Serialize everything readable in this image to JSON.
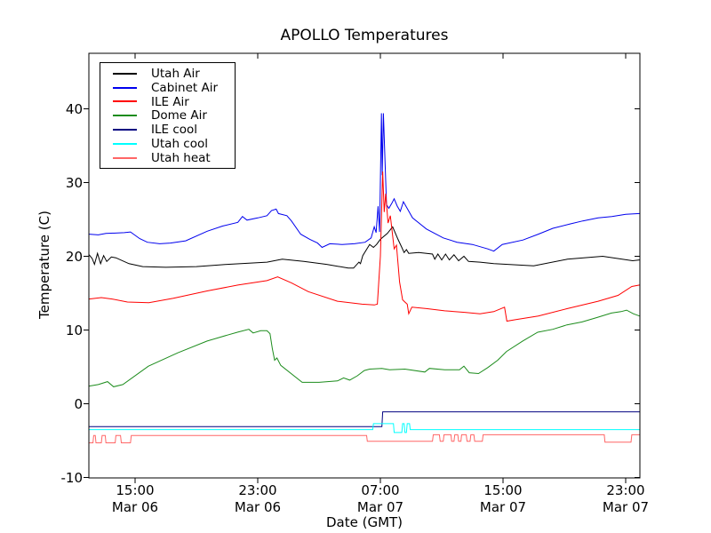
{
  "title": "APOLLO Temperatures",
  "chart_data": {
    "type": "line",
    "title": "APOLLO Temperatures",
    "xlabel": "Date (GMT)",
    "ylabel": "Temperature (C)",
    "x_unit": "hours since Mar 06 12:00 GMT",
    "xlim": [
      0,
      35.93
    ],
    "ylim": [
      -10,
      47.5
    ],
    "grid": false,
    "legend_position": "upper left",
    "frame_color": "#000000",
    "y_ticks": [
      {
        "value": 40,
        "label": "40"
      },
      {
        "value": 30,
        "label": "30"
      },
      {
        "value": 20,
        "label": "20"
      },
      {
        "value": 10,
        "label": "10"
      },
      {
        "value": 0,
        "label": "0"
      },
      {
        "value": -10,
        "label": "-10"
      }
    ],
    "x_ticks": [
      {
        "hours": 3,
        "time": "15:00",
        "date": "Mar 06"
      },
      {
        "hours": 11,
        "time": "23:00",
        "date": "Mar 06"
      },
      {
        "hours": 19,
        "time": "07:00",
        "date": "Mar 07"
      },
      {
        "hours": 27,
        "time": "15:00",
        "date": "Mar 07"
      },
      {
        "hours": 35,
        "time": "23:00",
        "date": "Mar 07"
      }
    ],
    "series": [
      {
        "id": "utah-air",
        "name": "Utah Air",
        "color": "#000000",
        "points": [
          [
            0,
            20.2
          ],
          [
            0.2,
            19.7
          ],
          [
            0.35,
            18.9
          ],
          [
            0.55,
            20.4
          ],
          [
            0.75,
            19.0
          ],
          [
            0.95,
            20.1
          ],
          [
            1.15,
            19.3
          ],
          [
            1.45,
            19.9
          ],
          [
            1.75,
            19.8
          ],
          [
            2.6,
            19.0
          ],
          [
            3.5,
            18.6
          ],
          [
            5,
            18.5
          ],
          [
            7,
            18.6
          ],
          [
            9,
            18.9
          ],
          [
            11.6,
            19.2
          ],
          [
            12.6,
            19.6
          ],
          [
            14,
            19.3
          ],
          [
            15.5,
            18.9
          ],
          [
            16.9,
            18.4
          ],
          [
            17.25,
            18.4
          ],
          [
            17.6,
            19.2
          ],
          [
            17.7,
            19.0
          ],
          [
            17.85,
            20.1
          ],
          [
            18.3,
            21.6
          ],
          [
            18.55,
            21.2
          ],
          [
            18.75,
            21.6
          ],
          [
            19.0,
            22.3
          ],
          [
            19.45,
            23.1
          ],
          [
            19.8,
            24.0
          ],
          [
            20.15,
            22.3
          ],
          [
            20.4,
            21.2
          ],
          [
            20.55,
            20.5
          ],
          [
            20.7,
            20.9
          ],
          [
            20.85,
            20.4
          ],
          [
            21.5,
            20.5
          ],
          [
            22.4,
            20.3
          ],
          [
            22.55,
            19.6
          ],
          [
            22.75,
            20.3
          ],
          [
            23.0,
            19.5
          ],
          [
            23.25,
            20.3
          ],
          [
            23.5,
            19.5
          ],
          [
            23.8,
            20.2
          ],
          [
            24.1,
            19.4
          ],
          [
            24.45,
            20.0
          ],
          [
            24.75,
            19.3
          ],
          [
            25.5,
            19.2
          ],
          [
            26.4,
            19.0
          ],
          [
            29.0,
            18.7
          ],
          [
            31.2,
            19.6
          ],
          [
            33.5,
            20.0
          ],
          [
            35.45,
            19.4
          ],
          [
            35.9,
            19.5
          ]
        ]
      },
      {
        "id": "cabinet-air",
        "name": "Cabinet Air",
        "color": "#0000ee",
        "points": [
          [
            0,
            23.0
          ],
          [
            0.6,
            22.9
          ],
          [
            1.1,
            23.1
          ],
          [
            2.3,
            23.2
          ],
          [
            2.7,
            23.3
          ],
          [
            3.3,
            22.4
          ],
          [
            3.8,
            21.9
          ],
          [
            4.6,
            21.7
          ],
          [
            5.3,
            21.8
          ],
          [
            6.3,
            22.1
          ],
          [
            7.7,
            23.4
          ],
          [
            8.7,
            24.1
          ],
          [
            9.7,
            24.6
          ],
          [
            10.0,
            25.4
          ],
          [
            10.3,
            24.9
          ],
          [
            11.0,
            25.2
          ],
          [
            11.6,
            25.5
          ],
          [
            11.9,
            26.2
          ],
          [
            12.2,
            26.4
          ],
          [
            12.35,
            25.8
          ],
          [
            12.9,
            25.5
          ],
          [
            13.2,
            24.8
          ],
          [
            13.8,
            23.0
          ],
          [
            14.4,
            22.3
          ],
          [
            14.9,
            21.8
          ],
          [
            15.2,
            21.2
          ],
          [
            15.7,
            21.7
          ],
          [
            16.5,
            21.6
          ],
          [
            17.3,
            21.7
          ],
          [
            18.0,
            21.9
          ],
          [
            18.4,
            22.5
          ],
          [
            18.6,
            24.0
          ],
          [
            18.72,
            23.2
          ],
          [
            18.85,
            26.8
          ],
          [
            18.95,
            23.3
          ],
          [
            19.07,
            39.4
          ],
          [
            19.12,
            31.0
          ],
          [
            19.2,
            39.4
          ],
          [
            19.3,
            33.0
          ],
          [
            19.4,
            27.0
          ],
          [
            19.55,
            26.5
          ],
          [
            19.75,
            27.2
          ],
          [
            19.9,
            27.8
          ],
          [
            20.1,
            26.8
          ],
          [
            20.3,
            26.1
          ],
          [
            20.5,
            27.4
          ],
          [
            20.8,
            26.3
          ],
          [
            21.1,
            25.2
          ],
          [
            22.0,
            23.7
          ],
          [
            23.1,
            22.5
          ],
          [
            24.0,
            21.9
          ],
          [
            25.0,
            21.6
          ],
          [
            26.0,
            21.0
          ],
          [
            26.4,
            20.7
          ],
          [
            26.95,
            21.6
          ],
          [
            28.3,
            22.2
          ],
          [
            29.3,
            23.0
          ],
          [
            30.25,
            23.8
          ],
          [
            31.4,
            24.4
          ],
          [
            32.2,
            24.8
          ],
          [
            33.2,
            25.2
          ],
          [
            34.1,
            25.4
          ],
          [
            35.0,
            25.7
          ],
          [
            35.9,
            25.8
          ]
        ]
      },
      {
        "id": "ile-air",
        "name": "ILE Air",
        "color": "#ff0000",
        "points": [
          [
            0,
            14.2
          ],
          [
            0.8,
            14.4
          ],
          [
            1.5,
            14.2
          ],
          [
            2.5,
            13.8
          ],
          [
            3.9,
            13.7
          ],
          [
            5.5,
            14.3
          ],
          [
            7.7,
            15.3
          ],
          [
            9.7,
            16.1
          ],
          [
            11.6,
            16.7
          ],
          [
            12.3,
            17.2
          ],
          [
            13.2,
            16.4
          ],
          [
            14.3,
            15.2
          ],
          [
            16.2,
            13.9
          ],
          [
            17.8,
            13.5
          ],
          [
            18.6,
            13.4
          ],
          [
            18.8,
            13.5
          ],
          [
            19.0,
            20.0
          ],
          [
            19.15,
            31.5
          ],
          [
            19.25,
            26.0
          ],
          [
            19.35,
            28.5
          ],
          [
            19.5,
            24.5
          ],
          [
            19.65,
            25.5
          ],
          [
            19.9,
            21.0
          ],
          [
            20.05,
            21.5
          ],
          [
            20.25,
            16.5
          ],
          [
            20.45,
            14.1
          ],
          [
            20.6,
            13.8
          ],
          [
            20.75,
            13.5
          ],
          [
            20.85,
            12.2
          ],
          [
            21.05,
            13.1
          ],
          [
            22.0,
            12.9
          ],
          [
            23.2,
            12.6
          ],
          [
            24.5,
            12.4
          ],
          [
            25.5,
            12.2
          ],
          [
            26.4,
            12.5
          ],
          [
            27.1,
            13.1
          ],
          [
            27.25,
            11.2
          ],
          [
            27.8,
            11.4
          ],
          [
            29.3,
            11.9
          ],
          [
            31.2,
            12.9
          ],
          [
            33.2,
            13.9
          ],
          [
            34.5,
            14.7
          ],
          [
            35.4,
            15.9
          ],
          [
            35.9,
            16.1
          ]
        ]
      },
      {
        "id": "dome-air",
        "name": "Dome Air",
        "color": "#1c8c1c",
        "points": [
          [
            0,
            2.4
          ],
          [
            0.6,
            2.6
          ],
          [
            1.2,
            3.0
          ],
          [
            1.6,
            2.3
          ],
          [
            2.2,
            2.6
          ],
          [
            3.87,
            5.1
          ],
          [
            5.78,
            6.9
          ],
          [
            7.7,
            8.5
          ],
          [
            9.0,
            9.3
          ],
          [
            9.67,
            9.7
          ],
          [
            10.42,
            10.1
          ],
          [
            10.7,
            9.6
          ],
          [
            11.2,
            9.9
          ],
          [
            11.6,
            9.9
          ],
          [
            11.8,
            9.5
          ],
          [
            11.95,
            7.5
          ],
          [
            12.1,
            5.9
          ],
          [
            12.25,
            6.2
          ],
          [
            12.5,
            5.2
          ],
          [
            13.9,
            2.9
          ],
          [
            15.0,
            2.9
          ],
          [
            16.2,
            3.1
          ],
          [
            16.6,
            3.5
          ],
          [
            17.0,
            3.2
          ],
          [
            17.5,
            3.8
          ],
          [
            17.95,
            4.5
          ],
          [
            18.3,
            4.7
          ],
          [
            19.1,
            4.8
          ],
          [
            19.6,
            4.6
          ],
          [
            20.6,
            4.7
          ],
          [
            21.9,
            4.3
          ],
          [
            22.2,
            4.8
          ],
          [
            23.2,
            4.6
          ],
          [
            24.16,
            4.6
          ],
          [
            24.45,
            5.1
          ],
          [
            24.8,
            4.2
          ],
          [
            25.4,
            4.1
          ],
          [
            26.0,
            4.9
          ],
          [
            26.65,
            5.9
          ],
          [
            27.23,
            7.1
          ],
          [
            28.28,
            8.5
          ],
          [
            29.26,
            9.7
          ],
          [
            30.25,
            10.1
          ],
          [
            31.17,
            10.7
          ],
          [
            32.16,
            11.1
          ],
          [
            33.14,
            11.7
          ],
          [
            34.07,
            12.3
          ],
          [
            34.7,
            12.5
          ],
          [
            35.06,
            12.7
          ],
          [
            35.5,
            12.2
          ],
          [
            35.9,
            11.9
          ]
        ]
      },
      {
        "id": "ile-cool",
        "name": "ILE cool",
        "color": "#000080",
        "points": [
          [
            0,
            -3.1
          ],
          [
            19.1,
            -3.1
          ],
          [
            19.15,
            -1.1
          ],
          [
            35.9,
            -1.1
          ]
        ]
      },
      {
        "id": "utah-cool",
        "name": "Utah cool",
        "color": "#00ffff",
        "points": [
          [
            0,
            -3.5
          ],
          [
            18.5,
            -3.5
          ],
          [
            18.55,
            -2.7
          ],
          [
            19.85,
            -2.7
          ],
          [
            19.9,
            -3.9
          ],
          [
            20.4,
            -3.9
          ],
          [
            20.45,
            -2.7
          ],
          [
            20.55,
            -2.7
          ],
          [
            20.6,
            -3.9
          ],
          [
            20.7,
            -3.9
          ],
          [
            20.75,
            -2.7
          ],
          [
            20.9,
            -2.7
          ],
          [
            20.95,
            -3.5
          ],
          [
            35.9,
            -3.5
          ]
        ]
      },
      {
        "id": "utah-heat",
        "name": "Utah heat",
        "color": "#ff6666",
        "points": [
          [
            0,
            -5.3
          ],
          [
            0.25,
            -5.3
          ],
          [
            0.3,
            -4.3
          ],
          [
            0.4,
            -4.3
          ],
          [
            0.45,
            -5.3
          ],
          [
            0.8,
            -5.3
          ],
          [
            0.85,
            -4.3
          ],
          [
            1.05,
            -4.3
          ],
          [
            1.1,
            -5.3
          ],
          [
            1.7,
            -5.3
          ],
          [
            1.75,
            -4.3
          ],
          [
            2.05,
            -4.3
          ],
          [
            2.1,
            -5.3
          ],
          [
            2.7,
            -5.3
          ],
          [
            2.75,
            -4.3
          ],
          [
            18.1,
            -4.3
          ],
          [
            18.15,
            -5.1
          ],
          [
            22.4,
            -5.1
          ],
          [
            22.45,
            -4.2
          ],
          [
            22.85,
            -4.2
          ],
          [
            22.9,
            -5.1
          ],
          [
            23.1,
            -5.1
          ],
          [
            23.15,
            -4.2
          ],
          [
            23.6,
            -4.2
          ],
          [
            23.65,
            -5.1
          ],
          [
            23.8,
            -5.1
          ],
          [
            23.85,
            -4.2
          ],
          [
            24.05,
            -4.2
          ],
          [
            24.1,
            -5.1
          ],
          [
            24.25,
            -5.1
          ],
          [
            24.3,
            -4.2
          ],
          [
            24.6,
            -4.2
          ],
          [
            24.65,
            -5.1
          ],
          [
            24.85,
            -5.1
          ],
          [
            24.9,
            -4.2
          ],
          [
            25.1,
            -4.2
          ],
          [
            25.15,
            -5.1
          ],
          [
            25.65,
            -5.1
          ],
          [
            25.7,
            -4.2
          ],
          [
            33.6,
            -4.2
          ],
          [
            33.65,
            -5.2
          ],
          [
            35.35,
            -5.2
          ],
          [
            35.4,
            -4.2
          ],
          [
            35.9,
            -4.2
          ]
        ]
      }
    ]
  }
}
